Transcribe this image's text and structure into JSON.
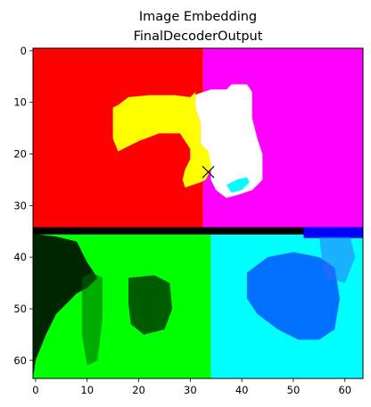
{
  "figure": {
    "title_line1": "Image Embedding",
    "title_line2": "FinalDecoderOutput"
  },
  "chart_data": {
    "type": "heatmap",
    "title": "Image Embedding\nFinalDecoderOutput",
    "xlabel": "",
    "ylabel": "",
    "grid_size": [
      64,
      64
    ],
    "xlim": [
      -0.5,
      63.5
    ],
    "ylim": [
      63.5,
      -0.5
    ],
    "x_ticks": [
      0,
      10,
      20,
      30,
      40,
      50,
      60
    ],
    "y_ticks": [
      0,
      10,
      20,
      30,
      40,
      50,
      60
    ],
    "grid": false,
    "marker": {
      "symbol": "x",
      "x": 33.5,
      "y": 23.5,
      "color": "#000000"
    },
    "regions": [
      {
        "color": "#ff0000",
        "x0": -0.5,
        "x1": 32.5,
        "y0": -0.5,
        "y1": 34.5
      },
      {
        "color": "#ff00ff",
        "x0": 32.5,
        "x1": 63.5,
        "y0": -0.5,
        "y1": 34.5
      },
      {
        "color": "#00ff00",
        "x0": -0.5,
        "x1": 34,
        "y0": 34.5,
        "y1": 63.5
      },
      {
        "color": "#00ffff",
        "x0": 34,
        "x1": 63.5,
        "y0": 34.5,
        "y1": 63.5
      },
      {
        "color": "#000000",
        "x0": -0.5,
        "x1": 63.5,
        "y0": 34.2,
        "y1": 35.6
      },
      {
        "color": "#0000ff",
        "x0": 52,
        "x1": 63.5,
        "y0": 34.2,
        "y1": 36.3
      }
    ],
    "blobs": [
      {
        "color": "#ffff00",
        "points": [
          [
            15,
            11
          ],
          [
            16,
            10.5
          ],
          [
            18,
            9
          ],
          [
            22,
            8.6
          ],
          [
            27,
            8.6
          ],
          [
            30,
            9
          ],
          [
            31,
            8
          ],
          [
            31,
            11
          ],
          [
            32,
            14
          ],
          [
            32,
            17
          ],
          [
            32,
            18
          ],
          [
            33.5,
            19.5
          ],
          [
            34,
            21
          ],
          [
            34,
            23
          ],
          [
            33,
            25
          ],
          [
            32,
            25.5
          ],
          [
            29,
            26.5
          ],
          [
            28.5,
            25
          ],
          [
            29,
            23
          ],
          [
            30,
            21
          ],
          [
            30,
            19
          ],
          [
            28,
            16
          ],
          [
            24,
            16
          ],
          [
            20,
            17.5
          ],
          [
            17,
            19
          ],
          [
            16,
            19.5
          ],
          [
            15,
            17
          ]
        ]
      },
      {
        "color": "#ffffff",
        "points": [
          [
            31,
            8.5
          ],
          [
            34,
            7.5
          ],
          [
            37,
            7.5
          ],
          [
            38,
            6.5
          ],
          [
            41,
            6.5
          ],
          [
            42,
            8
          ],
          [
            42,
            11
          ],
          [
            42,
            13
          ],
          [
            43,
            17
          ],
          [
            44,
            20
          ],
          [
            44,
            23
          ],
          [
            44,
            25
          ],
          [
            42,
            27
          ],
          [
            39,
            28
          ],
          [
            37,
            28.5
          ],
          [
            35,
            27
          ],
          [
            34,
            25
          ],
          [
            34,
            22
          ],
          [
            33.5,
            19.5
          ],
          [
            32,
            18
          ],
          [
            32,
            14
          ],
          [
            31,
            11
          ]
        ]
      },
      {
        "color": "#00ffff",
        "points": [
          [
            37,
            26
          ],
          [
            39,
            25
          ],
          [
            41,
            24.5
          ],
          [
            41.5,
            25.5
          ],
          [
            40,
            27
          ],
          [
            38,
            27.5
          ]
        ]
      },
      {
        "color": "#000000",
        "opacity": 0.85,
        "points": [
          [
            -0.5,
            35.5
          ],
          [
            4,
            36
          ],
          [
            8,
            37
          ],
          [
            10,
            41
          ],
          [
            12,
            44
          ],
          [
            10,
            46
          ],
          [
            8,
            47
          ],
          [
            6,
            49
          ],
          [
            4,
            51
          ],
          [
            2,
            55
          ],
          [
            0,
            60
          ],
          [
            -0.5,
            63.5
          ]
        ]
      },
      {
        "color": "#006600",
        "opacity": 0.55,
        "points": [
          [
            9,
            44
          ],
          [
            11,
            43
          ],
          [
            13,
            44
          ],
          [
            13,
            52
          ],
          [
            12,
            60
          ],
          [
            10,
            61
          ],
          [
            9,
            55
          ]
        ]
      },
      {
        "color": "#003300",
        "opacity": 0.8,
        "points": [
          [
            18,
            44
          ],
          [
            23,
            43.5
          ],
          [
            26,
            45
          ],
          [
            26.5,
            50
          ],
          [
            25,
            54
          ],
          [
            21,
            55
          ],
          [
            18.5,
            53
          ],
          [
            18,
            49
          ]
        ]
      },
      {
        "color": "#0033ff",
        "opacity": 0.7,
        "points": [
          [
            41,
            43
          ],
          [
            45,
            40
          ],
          [
            50,
            39
          ],
          [
            55,
            40
          ],
          [
            58,
            42
          ],
          [
            59,
            48
          ],
          [
            58,
            54
          ],
          [
            55,
            56
          ],
          [
            51,
            56
          ],
          [
            47,
            54
          ],
          [
            43,
            51
          ],
          [
            41,
            48
          ]
        ]
      },
      {
        "color": "#3366ff",
        "opacity": 0.5,
        "points": [
          [
            55,
            36
          ],
          [
            61,
            36
          ],
          [
            62,
            40
          ],
          [
            60,
            45
          ],
          [
            56,
            44
          ]
        ]
      }
    ]
  }
}
